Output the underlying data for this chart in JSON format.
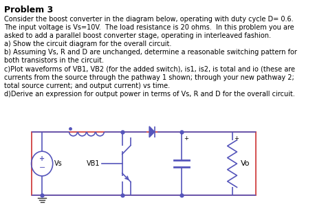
{
  "title": "Problem 3",
  "body_text": [
    "Consider the boost converter in the diagram below, operating with duty cycle D= 0.6.",
    "The input voltage is Vs=10V.  The load resistance is 20 ohms.  In this problem you are",
    "asked to add a parallel boost converter stage, operating in interleaved fashion.",
    "a) Show the circuit diagram for the overall circuit.",
    "b) Assuming Vs, R and D are unchanged, determine a reasonable switching pattern for",
    "both transistors in the circuit.",
    "c)Plot waveforms of VB1, VB2 (for the added switch), is1, is2, is total and io (these are",
    "currents from the source through the pathway 1 shown; through your new pathway 2;",
    "total source current; and output current) vs time.",
    "d)Derive an expression for output power in terms of Vs, R and D for the overall circuit."
  ],
  "bg_color": "#ffffff",
  "text_color": "#000000",
  "circuit_rect_color": "#d04040",
  "circuit_line_color": "#5555bb",
  "font_size_title": 9,
  "font_size_body": 7.0
}
